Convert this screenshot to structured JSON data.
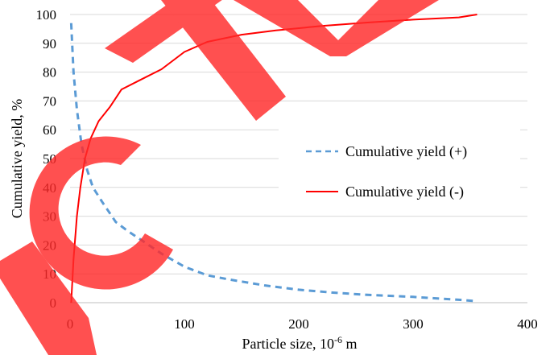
{
  "chart_data": {
    "type": "line",
    "xlabel": "Particle size, 10",
    "xlabel_sup": "-6",
    "xlabel_suffix": " m",
    "ylabel": "Cumulative yield, %",
    "xlim": [
      0,
      400
    ],
    "ylim": [
      0,
      100
    ],
    "x_ticks": [
      0,
      100,
      200,
      300,
      400
    ],
    "y_ticks": [
      0,
      10,
      20,
      30,
      40,
      50,
      60,
      70,
      80,
      90,
      100
    ],
    "grid": "horizontal",
    "legend_position": "right-middle",
    "series": [
      {
        "name": "Cumulative yield (+)",
        "color": "#5b9bd5",
        "style": "dashed",
        "points": [
          [
            1,
            97
          ],
          [
            3,
            80
          ],
          [
            6,
            67
          ],
          [
            10,
            55
          ],
          [
            15,
            46
          ],
          [
            20,
            40
          ],
          [
            28,
            35
          ],
          [
            40,
            28
          ],
          [
            50,
            25
          ],
          [
            65,
            21
          ],
          [
            80,
            17
          ],
          [
            100,
            12.5
          ],
          [
            120,
            9.5
          ],
          [
            140,
            8
          ],
          [
            170,
            6
          ],
          [
            200,
            4.5
          ],
          [
            230,
            3.5
          ],
          [
            260,
            2.7
          ],
          [
            300,
            2
          ],
          [
            340,
            1
          ],
          [
            356,
            0.5
          ]
        ]
      },
      {
        "name": "Cumulative yield (-)",
        "color": "#ff0000",
        "style": "solid",
        "points": [
          [
            1,
            0
          ],
          [
            3,
            15
          ],
          [
            6,
            30
          ],
          [
            9,
            40
          ],
          [
            13,
            50
          ],
          [
            18,
            57
          ],
          [
            25,
            63
          ],
          [
            35,
            68
          ],
          [
            45,
            74
          ],
          [
            60,
            77
          ],
          [
            80,
            81
          ],
          [
            100,
            87
          ],
          [
            120,
            90.5
          ],
          [
            150,
            93
          ],
          [
            180,
            94.5
          ],
          [
            220,
            96
          ],
          [
            260,
            97.2
          ],
          [
            300,
            98.2
          ],
          [
            340,
            99
          ],
          [
            356,
            100
          ]
        ]
      }
    ]
  },
  "watermark": {
    "color": "#ff0000"
  }
}
